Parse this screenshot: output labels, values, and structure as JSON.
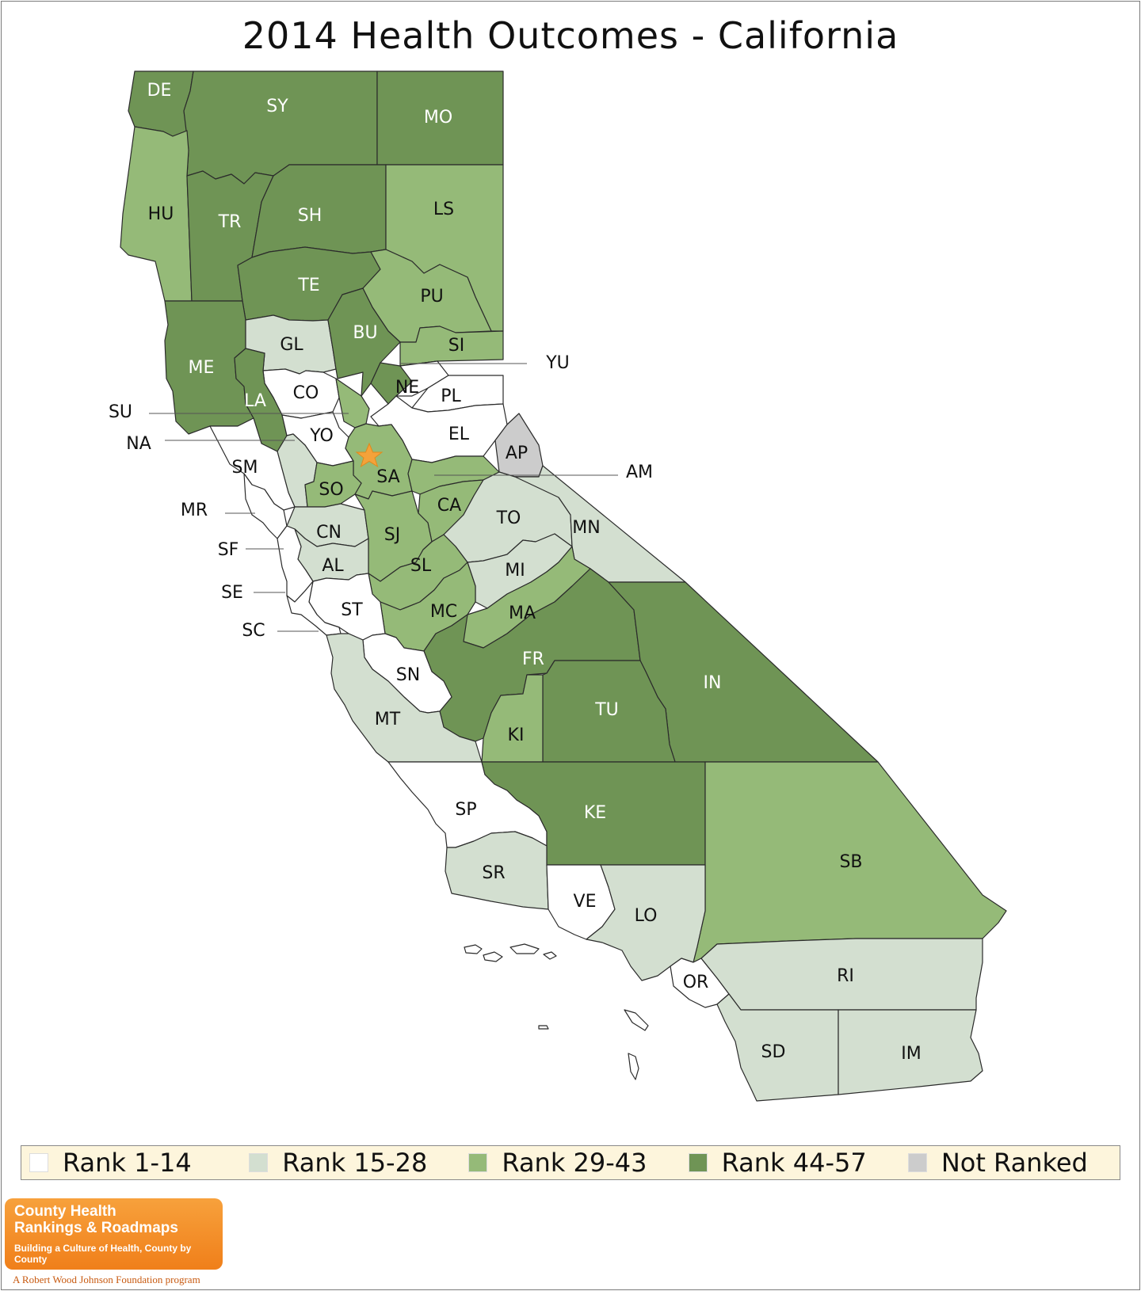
{
  "title": "2014 Health Outcomes - California",
  "colors": {
    "rank_1_14": "#ffffff",
    "rank_15_28": "#d3dfd0",
    "rank_29_43": "#95ba78",
    "rank_44_57": "#6f9455",
    "not_ranked": "#cccccc",
    "star": "#f4a23a",
    "label_dark_fill": "#ffffff",
    "label_light_fill": "#111111"
  },
  "legend": [
    {
      "label": "Rank 1-14",
      "color": "#ffffff"
    },
    {
      "label": "Rank 15-28",
      "color": "#d3dfd0"
    },
    {
      "label": "Rank 29-43",
      "color": "#95ba78"
    },
    {
      "label": "Rank 44-57",
      "color": "#6f9455"
    },
    {
      "label": "Not Ranked",
      "color": "#cccccc"
    }
  ],
  "counties": [
    {
      "code": "DE",
      "rank_group": "Rank 44-57"
    },
    {
      "code": "SY",
      "rank_group": "Rank 44-57"
    },
    {
      "code": "MO",
      "rank_group": "Rank 44-57"
    },
    {
      "code": "HU",
      "rank_group": "Rank 29-43"
    },
    {
      "code": "TR",
      "rank_group": "Rank 44-57"
    },
    {
      "code": "SH",
      "rank_group": "Rank 44-57"
    },
    {
      "code": "LS",
      "rank_group": "Rank 29-43"
    },
    {
      "code": "TE",
      "rank_group": "Rank 44-57"
    },
    {
      "code": "PU",
      "rank_group": "Rank 29-43"
    },
    {
      "code": "ME",
      "rank_group": "Rank 44-57"
    },
    {
      "code": "GL",
      "rank_group": "Rank 15-28"
    },
    {
      "code": "BU",
      "rank_group": "Rank 44-57"
    },
    {
      "code": "SI",
      "rank_group": "Rank 29-43"
    },
    {
      "code": "YU",
      "rank_group": "Rank 44-57"
    },
    {
      "code": "NE",
      "rank_group": "Rank 1-14"
    },
    {
      "code": "CO",
      "rank_group": "Rank 1-14"
    },
    {
      "code": "LA",
      "rank_group": "Rank 44-57"
    },
    {
      "code": "PL",
      "rank_group": "Rank 1-14"
    },
    {
      "code": "SU",
      "rank_group": "Rank 29-43"
    },
    {
      "code": "YO",
      "rank_group": "Rank 1-14"
    },
    {
      "code": "EL",
      "rank_group": "Rank 1-14"
    },
    {
      "code": "NA",
      "rank_group": "Rank 15-28"
    },
    {
      "code": "AP",
      "rank_group": "Not Ranked"
    },
    {
      "code": "SA",
      "rank_group": "Rank 29-43"
    },
    {
      "code": "AM",
      "rank_group": "Rank 29-43"
    },
    {
      "code": "SM",
      "rank_group": "Rank 1-14"
    },
    {
      "code": "SO",
      "rank_group": "Rank 29-43"
    },
    {
      "code": "CA",
      "rank_group": "Rank 29-43"
    },
    {
      "code": "MR",
      "rank_group": "Rank 1-14"
    },
    {
      "code": "TO",
      "rank_group": "Rank 15-28"
    },
    {
      "code": "MN",
      "rank_group": "Rank 15-28"
    },
    {
      "code": "CN",
      "rank_group": "Rank 15-28"
    },
    {
      "code": "SJ",
      "rank_group": "Rank 29-43"
    },
    {
      "code": "SF",
      "rank_group": "Rank 15-28"
    },
    {
      "code": "AL",
      "rank_group": "Rank 15-28"
    },
    {
      "code": "SL",
      "rank_group": "Rank 29-43"
    },
    {
      "code": "MI",
      "rank_group": "Rank 15-28"
    },
    {
      "code": "SE",
      "rank_group": "Rank 1-14"
    },
    {
      "code": "MC",
      "rank_group": "Rank 29-43"
    },
    {
      "code": "MA",
      "rank_group": "Rank 29-43"
    },
    {
      "code": "ST",
      "rank_group": "Rank 1-14"
    },
    {
      "code": "SC",
      "rank_group": "Rank 1-14"
    },
    {
      "code": "FR",
      "rank_group": "Rank 44-57"
    },
    {
      "code": "IN",
      "rank_group": "Rank 44-57"
    },
    {
      "code": "SN",
      "rank_group": "Rank 1-14"
    },
    {
      "code": "TU",
      "rank_group": "Rank 44-57"
    },
    {
      "code": "KI",
      "rank_group": "Rank 29-43"
    },
    {
      "code": "MT",
      "rank_group": "Rank 15-28"
    },
    {
      "code": "SP",
      "rank_group": "Rank 1-14"
    },
    {
      "code": "KE",
      "rank_group": "Rank 44-57"
    },
    {
      "code": "SB",
      "rank_group": "Rank 29-43"
    },
    {
      "code": "SR",
      "rank_group": "Rank 15-28"
    },
    {
      "code": "VE",
      "rank_group": "Rank 1-14"
    },
    {
      "code": "LO",
      "rank_group": "Rank 15-28"
    },
    {
      "code": "OR",
      "rank_group": "Rank 1-14"
    },
    {
      "code": "RI",
      "rank_group": "Rank 15-28"
    },
    {
      "code": "SD",
      "rank_group": "Rank 15-28"
    },
    {
      "code": "IM",
      "rank_group": "Rank 15-28"
    }
  ],
  "logo": {
    "line1": "County Health",
    "line2": "Rankings & Roadmaps",
    "tagline": "Building a Culture of Health, County by County"
  },
  "foundation": "A Robert Wood Johnson Foundation program"
}
